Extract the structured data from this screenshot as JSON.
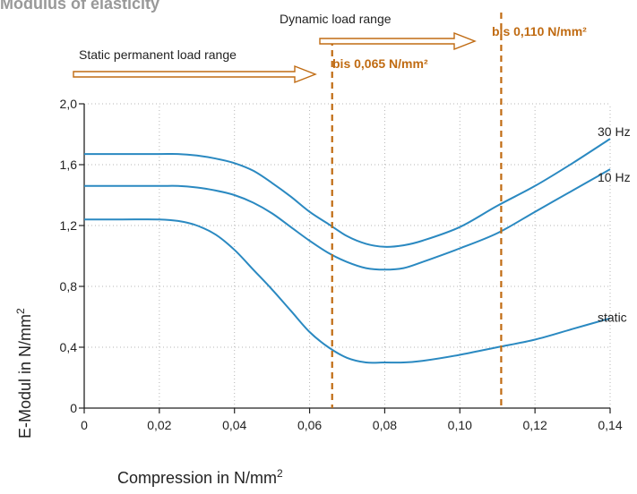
{
  "chart_data": {
    "type": "line",
    "title": "Modulus of elasticity",
    "xlabel": "Compression in N/mm",
    "xlabel_sup": "2",
    "ylabel": "E-Modul in N/mm",
    "ylabel_sup": "2",
    "xlim": [
      0,
      0.14
    ],
    "ylim": [
      0,
      2.0
    ],
    "x_ticks": [
      0,
      0.02,
      0.04,
      0.06,
      0.08,
      0.1,
      0.12,
      0.14
    ],
    "x_tick_labels": [
      "0",
      "0,02",
      "0,04",
      "0,06",
      "0,08",
      "0,10",
      "0,12",
      "0,14"
    ],
    "y_ticks": [
      0,
      0.4,
      0.8,
      1.2,
      1.6,
      2.0
    ],
    "y_tick_labels": [
      "0",
      "0,4",
      "0,8",
      "1,2",
      "1,6",
      "2,0"
    ],
    "grid": true,
    "colors": {
      "series": "#2a89c1",
      "annotation": "#c06b12",
      "grid": "#b5b5b5",
      "axis": "#222222",
      "title": "#999999"
    },
    "series": [
      {
        "name": "30 Hz",
        "x": [
          0,
          0.01,
          0.02,
          0.025,
          0.03,
          0.035,
          0.04,
          0.045,
          0.05,
          0.055,
          0.06,
          0.065,
          0.07,
          0.075,
          0.08,
          0.085,
          0.09,
          0.1,
          0.11,
          0.12,
          0.13,
          0.14
        ],
        "y": [
          1.67,
          1.67,
          1.67,
          1.67,
          1.66,
          1.64,
          1.61,
          1.56,
          1.48,
          1.39,
          1.29,
          1.21,
          1.13,
          1.08,
          1.06,
          1.07,
          1.1,
          1.19,
          1.33,
          1.46,
          1.61,
          1.77
        ]
      },
      {
        "name": "10 Hz",
        "x": [
          0,
          0.01,
          0.02,
          0.025,
          0.03,
          0.035,
          0.04,
          0.045,
          0.05,
          0.055,
          0.06,
          0.065,
          0.07,
          0.075,
          0.08,
          0.085,
          0.09,
          0.1,
          0.11,
          0.12,
          0.13,
          0.14
        ],
        "y": [
          1.46,
          1.46,
          1.46,
          1.46,
          1.45,
          1.43,
          1.4,
          1.35,
          1.28,
          1.19,
          1.1,
          1.02,
          0.96,
          0.92,
          0.91,
          0.92,
          0.96,
          1.05,
          1.15,
          1.29,
          1.43,
          1.57
        ]
      },
      {
        "name": "static",
        "x": [
          0,
          0.01,
          0.02,
          0.025,
          0.03,
          0.035,
          0.04,
          0.045,
          0.05,
          0.055,
          0.06,
          0.065,
          0.07,
          0.075,
          0.08,
          0.085,
          0.09,
          0.1,
          0.11,
          0.12,
          0.13,
          0.14
        ],
        "y": [
          1.24,
          1.24,
          1.24,
          1.23,
          1.2,
          1.14,
          1.04,
          0.91,
          0.78,
          0.64,
          0.5,
          0.4,
          0.33,
          0.3,
          0.3,
          0.3,
          0.31,
          0.35,
          0.4,
          0.45,
          0.52,
          0.59
        ]
      }
    ],
    "annotations": {
      "static_range": "Static permanent load range",
      "dynamic_range": "Dynamic load range",
      "limit_static": {
        "x": 0.066,
        "label": "bis 0,065 N/mm²"
      },
      "limit_dynamic": {
        "x": 0.111,
        "label": "bis 0,110 N/mm²"
      }
    }
  }
}
